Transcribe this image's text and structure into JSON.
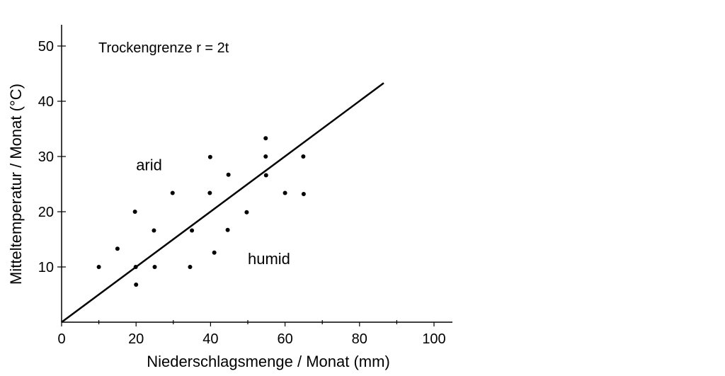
{
  "chart_data": {
    "type": "scatter",
    "title": "Trockengrenze r = 2t",
    "xlabel": "Niederschlagsmenge / Monat (mm)",
    "ylabel": "Mitteltemperatur / Monat (°C)",
    "xlim": [
      0,
      105
    ],
    "ylim": [
      0,
      54
    ],
    "x_ticks": [
      0,
      20,
      40,
      60,
      80,
      100
    ],
    "x_minor_ticks": [
      10,
      30,
      50,
      70,
      90
    ],
    "y_ticks": [
      10,
      20,
      30,
      40,
      50
    ],
    "grid": false,
    "points": [
      {
        "x": 10,
        "y": 10
      },
      {
        "x": 15,
        "y": 13.3
      },
      {
        "x": 19.7,
        "y": 20
      },
      {
        "x": 19.9,
        "y": 10
      },
      {
        "x": 20,
        "y": 6.8
      },
      {
        "x": 24.8,
        "y": 16.6
      },
      {
        "x": 25,
        "y": 10
      },
      {
        "x": 29.8,
        "y": 23.4
      },
      {
        "x": 34.5,
        "y": 10
      },
      {
        "x": 35,
        "y": 16.6
      },
      {
        "x": 39.8,
        "y": 23.4
      },
      {
        "x": 39.9,
        "y": 29.9
      },
      {
        "x": 41,
        "y": 12.6
      },
      {
        "x": 44.6,
        "y": 16.7
      },
      {
        "x": 44.8,
        "y": 26.7
      },
      {
        "x": 49.7,
        "y": 19.9
      },
      {
        "x": 54.8,
        "y": 33.3
      },
      {
        "x": 54.8,
        "y": 30
      },
      {
        "x": 54.9,
        "y": 26.6
      },
      {
        "x": 60,
        "y": 23.4
      },
      {
        "x": 64.9,
        "y": 30
      },
      {
        "x": 65,
        "y": 23.2
      }
    ],
    "line": {
      "label": "r = 2t",
      "x": [
        0,
        86.5
      ],
      "y": [
        0,
        43.3
      ]
    },
    "annotations": [
      {
        "text": "arid",
        "x": 20,
        "y": 27.5
      },
      {
        "text": "humid",
        "x": 50,
        "y": 10.5
      }
    ]
  }
}
